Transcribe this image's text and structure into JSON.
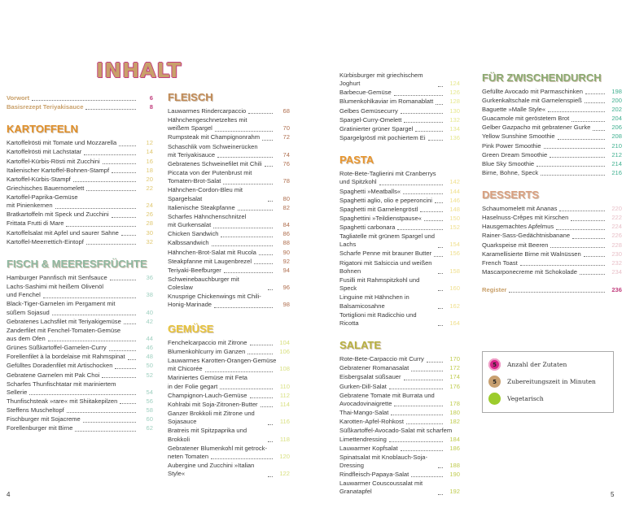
{
  "title": "INHALT",
  "page_left": "4",
  "page_right": "5",
  "columns": [
    [
      {
        "title": "",
        "color": "#c9a06a",
        "page_color": "#c2407f",
        "front": true,
        "entries": [
          {
            "lines": [
              "Vorwort"
            ],
            "page": "6"
          },
          {
            "lines": [
              "Basisrezept Teriyakisauce"
            ],
            "page": "8"
          }
        ]
      },
      {
        "title": "KARTOFFELN",
        "color": "#e0902a",
        "page_color": "#e0c870",
        "entries": [
          {
            "lines": [
              "Kartoffelrösti mit Tomate und Mozzarella"
            ],
            "page": "12"
          },
          {
            "lines": [
              "Kartoffelrösti mit Lachstatar"
            ],
            "page": "14"
          },
          {
            "lines": [
              "Kartoffel-Kürbis-Rösti mit Zucchini"
            ],
            "page": "16"
          },
          {
            "lines": [
              "Italienischer Kartoffel-Bohnen-Stampf"
            ],
            "page": "18"
          },
          {
            "lines": [
              "Kartoffel-Kürbis-Stampf"
            ],
            "page": "20"
          },
          {
            "lines": [
              "Griechisches Bauernomelett"
            ],
            "page": "22"
          },
          {
            "lines": [
              "Kartoffel-Paprika-Gemüse",
              "mit Pinienkernen"
            ],
            "page": "24"
          },
          {
            "lines": [
              "Bratkartoffeln mit Speck und Zucchini"
            ],
            "page": "26"
          },
          {
            "lines": [
              "Frittata Frutti di Mare"
            ],
            "page": "28"
          },
          {
            "lines": [
              "Kartoffelsalat mit Apfel und saurer Sahne"
            ],
            "page": "30"
          },
          {
            "lines": [
              "Kartoffel-Meerrettich-Eintopf"
            ],
            "page": "32"
          }
        ]
      },
      {
        "title": "FISCH & MEERESFRÜCHTE",
        "color": "#8fb8a0",
        "page_color": "#9fd0c0",
        "entries": [
          {
            "lines": [
              "Hamburger Pannfisch mit Senfsauce"
            ],
            "page": "36"
          },
          {
            "lines": [
              "Lachs-Sashimi mit heißem Olivenöl",
              "und Fenchel"
            ],
            "page": "38"
          },
          {
            "lines": [
              "Black-Tiger-Garnelen im Pergament mit",
              "süßem Sojasud"
            ],
            "page": "40"
          },
          {
            "lines": [
              "Gebratenes Lachsfilet mit Teriyakigemüse"
            ],
            "page": "42"
          },
          {
            "lines": [
              "Zanderfilet mit Fenchel-Tomaten-Gemüse",
              "aus dem Ofen"
            ],
            "page": "44"
          },
          {
            "lines": [
              "Grünes Süßkartoffel-Garnelen-Curry"
            ],
            "page": "46"
          },
          {
            "lines": [
              "Forellenfilet à la bordelaise mit Rahmspinat"
            ],
            "page": "48"
          },
          {
            "lines": [
              "Gefülltes Doradenfilet mit Artischocken"
            ],
            "page": "50"
          },
          {
            "lines": [
              "Gebratene Garnelen mit Pak Choi"
            ],
            "page": "52"
          },
          {
            "lines": [
              "Scharfes Thunfischtatar mit mariniertem",
              "Sellerie"
            ],
            "page": "54"
          },
          {
            "lines": [
              "Thunfischsteak »rare« mit Shiitakepilzen"
            ],
            "page": "56"
          },
          {
            "lines": [
              "Steffens Muscheltopf"
            ],
            "page": "58"
          },
          {
            "lines": [
              "Fischburger mit Sojacreme"
            ],
            "page": "60"
          },
          {
            "lines": [
              "Forellenburger mit Birne"
            ],
            "page": "62"
          }
        ]
      }
    ],
    [
      {
        "title": "FLEISCH",
        "color": "#c08a55",
        "page_color": "#b07050",
        "entries": [
          {
            "lines": [
              "Lauwarmes Rindercarpaccio"
            ],
            "page": "68"
          },
          {
            "lines": [
              "Hähnchengeschnetzeltes mit",
              "weißem Spargel"
            ],
            "page": "70"
          },
          {
            "lines": [
              "Rumpsteak mit Champignonrahm"
            ],
            "page": "72"
          },
          {
            "lines": [
              "Schaschlik vom Schweinerücken",
              "mit Teriyakisauce"
            ],
            "page": "74"
          },
          {
            "lines": [
              "Gebratenes Schweinefilet mit Chili"
            ],
            "page": "76"
          },
          {
            "lines": [
              "Piccata von der Putenbrust mit",
              "Tomaten-Brot-Salat"
            ],
            "page": "78"
          },
          {
            "lines": [
              "Hähnchen-Cordon-Bleu mit Spargelsalat"
            ],
            "page": "80"
          },
          {
            "lines": [
              "Italienische Steakpfanne"
            ],
            "page": "82"
          },
          {
            "lines": [
              "Scharfes Hähnchenschnitzel",
              "mit Gurkensalat"
            ],
            "page": "84"
          },
          {
            "lines": [
              "Chicken Sandwich"
            ],
            "page": "86"
          },
          {
            "lines": [
              "Kalbssandwich"
            ],
            "page": "88"
          },
          {
            "lines": [
              "Hähnchen-Brot-Salat mit Rucola"
            ],
            "page": "90"
          },
          {
            "lines": [
              "Steakpfanne mit Laugenbrezel"
            ],
            "page": "92"
          },
          {
            "lines": [
              "Teriyaki-Beefburger"
            ],
            "page": "94"
          },
          {
            "lines": [
              "Schweinebauchburger mit Coleslaw"
            ],
            "page": "96"
          },
          {
            "lines": [
              "Knusprige Chickenwings mit Chili-",
              "Honig-Marinade"
            ],
            "page": "98"
          }
        ]
      },
      {
        "title": "GEMÜSE",
        "color": "#e8c43a",
        "page_color": "#d8e080",
        "entries": [
          {
            "lines": [
              "Fenchelcarpaccio mit Zitrone"
            ],
            "page": "104"
          },
          {
            "lines": [
              "Blumenkohlcurry im Ganzen"
            ],
            "page": "106"
          },
          {
            "lines": [
              "Lauwarmes Karotten-Orangen-Gemüse",
              "mit Chicorée"
            ],
            "page": "108"
          },
          {
            "lines": [
              "Mariniertes Gemüse mit Feta",
              "in der Folie gegart"
            ],
            "page": "110"
          },
          {
            "lines": [
              "Champignon-Lauch-Gemüse"
            ],
            "page": "112"
          },
          {
            "lines": [
              "Kohlrabi mit Soja-Zitronen-Butter"
            ],
            "page": "114"
          },
          {
            "lines": [
              "Ganzer Brokkoli mit Zitrone und Sojasauce"
            ],
            "page": "116"
          },
          {
            "lines": [
              "Bratreis mit Spitzpaprika und Brokkoli"
            ],
            "page": "118"
          },
          {
            "lines": [
              "Gebratener Blumenkohl mit getrock-",
              "neten Tomaten"
            ],
            "page": "120"
          },
          {
            "lines": [
              "Aubergine und Zucchini »Italian Style«"
            ],
            "page": "122"
          }
        ]
      }
    ],
    [
      {
        "title": "",
        "color": "#e8c43a",
        "page_color": "#e6e890",
        "entries": [
          {
            "lines": [
              "Kürbisburger mit griechischem Joghurt"
            ],
            "page": "124"
          },
          {
            "lines": [
              "Barbecue-Gemüse"
            ],
            "page": "126"
          },
          {
            "lines": [
              "Blumenkohlkaviar im Romanablatt"
            ],
            "page": "128"
          },
          {
            "lines": [
              "Gelbes Gemüsecurry"
            ],
            "page": "130"
          },
          {
            "lines": [
              "Spargel-Curry-Omelett"
            ],
            "page": "132"
          },
          {
            "lines": [
              "Gratinierter grüner Spargel"
            ],
            "page": "134"
          },
          {
            "lines": [
              "Spargelgröstl mit pochiertem Ei"
            ],
            "page": "136"
          }
        ]
      },
      {
        "title": "PASTA",
        "color": "#e8962e",
        "page_color": "#f0e090",
        "entries": [
          {
            "lines": [
              "Rote-Bete-Taglierini mit Cranberrys",
              "und Spitzkohl"
            ],
            "page": "142"
          },
          {
            "lines": [
              "Spaghetti »Meatballs«"
            ],
            "page": "144"
          },
          {
            "lines": [
              "Spaghetti aglio, olio e peperoncini"
            ],
            "page": "146"
          },
          {
            "lines": [
              "Spaghetti mit Garnelengröstl"
            ],
            "page": "148"
          },
          {
            "lines": [
              "Spaghettini »Teildienstpause«"
            ],
            "page": "150"
          },
          {
            "lines": [
              "Spaghetti carbonara"
            ],
            "page": "152"
          },
          {
            "lines": [
              "Tagliatelle mit grünem Spargel und Lachs"
            ],
            "page": "154"
          },
          {
            "lines": [
              "Scharfe Penne mit brauner Butter"
            ],
            "page": "156"
          },
          {
            "lines": [
              "Rigatoni mit Salsiccia und weißen Bohnen"
            ],
            "page": "158"
          },
          {
            "lines": [
              "Fusilli mit Rahmspitzkohl und Speck"
            ],
            "page": "160"
          },
          {
            "lines": [
              "Linguine mit Hähnchen in Balsamicosahne"
            ],
            "page": "162"
          },
          {
            "lines": [
              "Tortiglioni mit Radicchio und Ricotta"
            ],
            "page": "164"
          }
        ]
      },
      {
        "title": "SALATE",
        "color": "#b8b040",
        "page_color": "#c0cc50",
        "entries": [
          {
            "lines": [
              "Rote-Bete-Carpaccio mit Curry"
            ],
            "page": "170"
          },
          {
            "lines": [
              "Gebratener Romanasalat"
            ],
            "page": "172"
          },
          {
            "lines": [
              "Eisbergsalat süßsauer"
            ],
            "page": "174"
          },
          {
            "lines": [
              "Gurken-Dill-Salat"
            ],
            "page": "176"
          },
          {
            "lines": [
              "Gebratene Tomate mit Burrata und",
              "Avocadovinaigrette"
            ],
            "page": "178"
          },
          {
            "lines": [
              "Thai-Mango-Salat"
            ],
            "page": "180"
          },
          {
            "lines": [
              "Karotten-Apfel-Rohkost"
            ],
            "page": "182"
          },
          {
            "lines": [
              "Süßkartoffel-Avocado-Salat mit scharfem",
              "Limettendressing"
            ],
            "page": "184"
          },
          {
            "lines": [
              "Lauwarmer Kopfsalat"
            ],
            "page": "186"
          },
          {
            "lines": [
              "Spinatsalat mit Knoblauch-Soja-Dressing"
            ],
            "page": "188"
          },
          {
            "lines": [
              "Rindfleisch-Papaya-Salat"
            ],
            "page": "190"
          },
          {
            "lines": [
              "Lauwarmer Couscoussalat mit Granatapfel"
            ],
            "page": "192"
          }
        ]
      }
    ],
    [
      {
        "title": "FÜR ZWISCHENDURCH",
        "color": "#8aaa70",
        "page_color": "#40b090",
        "entries": [
          {
            "lines": [
              "Gefüllte Avocado mit Parmaschinken"
            ],
            "page": "198"
          },
          {
            "lines": [
              "Gurkenkaltschale mit Garnelenspieß"
            ],
            "page": "200"
          },
          {
            "lines": [
              "Baguette »Malle Style«"
            ],
            "page": "202"
          },
          {
            "lines": [
              "Guacamole mit geröstetem Brot"
            ],
            "page": "204"
          },
          {
            "lines": [
              "Gelber Gazpacho mit gebratener Gurke"
            ],
            "page": "206"
          },
          {
            "lines": [
              "Yellow Sunshine Smoothie"
            ],
            "page": "208"
          },
          {
            "lines": [
              "Pink Power Smoothie"
            ],
            "page": "210"
          },
          {
            "lines": [
              "Green Dream Smoothie"
            ],
            "page": "212"
          },
          {
            "lines": [
              "Blue Sky Smoothie"
            ],
            "page": "214"
          },
          {
            "lines": [
              "Birne, Bohne, Speck"
            ],
            "page": "216"
          }
        ]
      },
      {
        "title": "DESSERTS",
        "color": "#d9a080",
        "page_color": "#e8c0c8",
        "entries": [
          {
            "lines": [
              "Schaumomelett mit Ananas"
            ],
            "page": "220"
          },
          {
            "lines": [
              "Haselnuss-Crêpes mit Kirschen"
            ],
            "page": "222"
          },
          {
            "lines": [
              "Hausgemachtes Apfelmus"
            ],
            "page": "224"
          },
          {
            "lines": [
              "Rainer-Sass-Gedächtnisbanane"
            ],
            "page": "226"
          },
          {
            "lines": [
              "Quarkspeise mit Beeren"
            ],
            "page": "228"
          },
          {
            "lines": [
              "Karamellisierte Birne mit Walnüssen"
            ],
            "page": "230"
          },
          {
            "lines": [
              "French Toast"
            ],
            "page": "232"
          },
          {
            "lines": [
              "Mascarponecreme mit Schokolade"
            ],
            "page": "234"
          }
        ]
      },
      {
        "title": "",
        "color": "#c9a06a",
        "page_color": "#c2407f",
        "front": true,
        "entries": [
          {
            "lines": [
              "Register"
            ],
            "page": "236"
          }
        ]
      }
    ]
  ],
  "legend": [
    {
      "icon": "ingredients-count-icon",
      "symbol": "5",
      "color": "#d6248a",
      "label": "Anzahl der Zutaten"
    },
    {
      "icon": "prep-time-icon",
      "symbol": "5",
      "color": "#c8a070",
      "label": "Zubereitungszeit in Minuten"
    },
    {
      "icon": "vegetarian-leaf-icon",
      "symbol": "",
      "color": "#9ccc2c",
      "label": "Vegetarisch"
    }
  ]
}
